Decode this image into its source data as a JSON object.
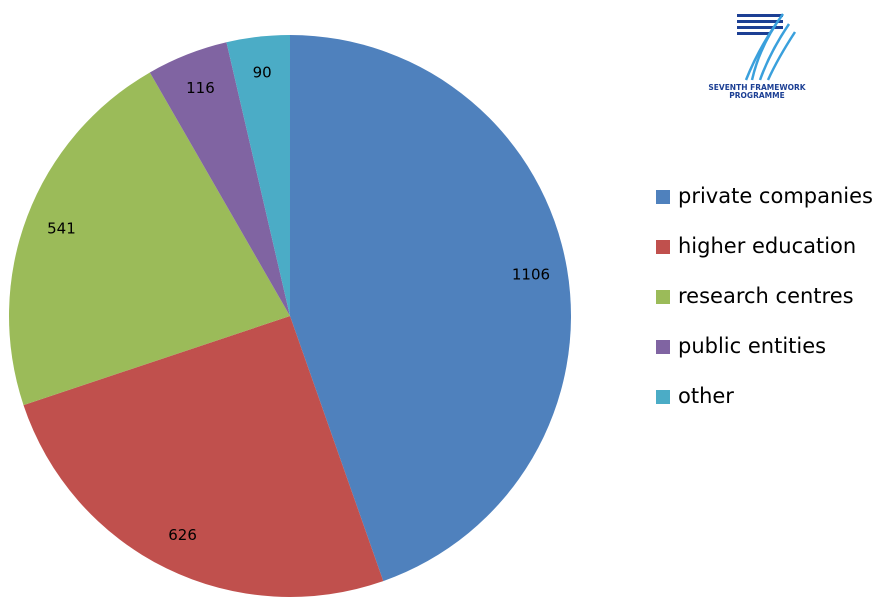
{
  "chart_data": {
    "type": "pie",
    "categories": [
      "private companies",
      "higher education",
      "research centres",
      "public entities",
      "other"
    ],
    "values": [
      1106,
      626,
      541,
      116,
      90
    ],
    "colors": [
      "#4f81bd",
      "#c0504d",
      "#9bbb59",
      "#8064a2",
      "#4bacc6"
    ],
    "legend": "right"
  },
  "logo": {
    "line1": "SEVENTH FRAMEWORK",
    "line2": "PROGRAMME"
  }
}
